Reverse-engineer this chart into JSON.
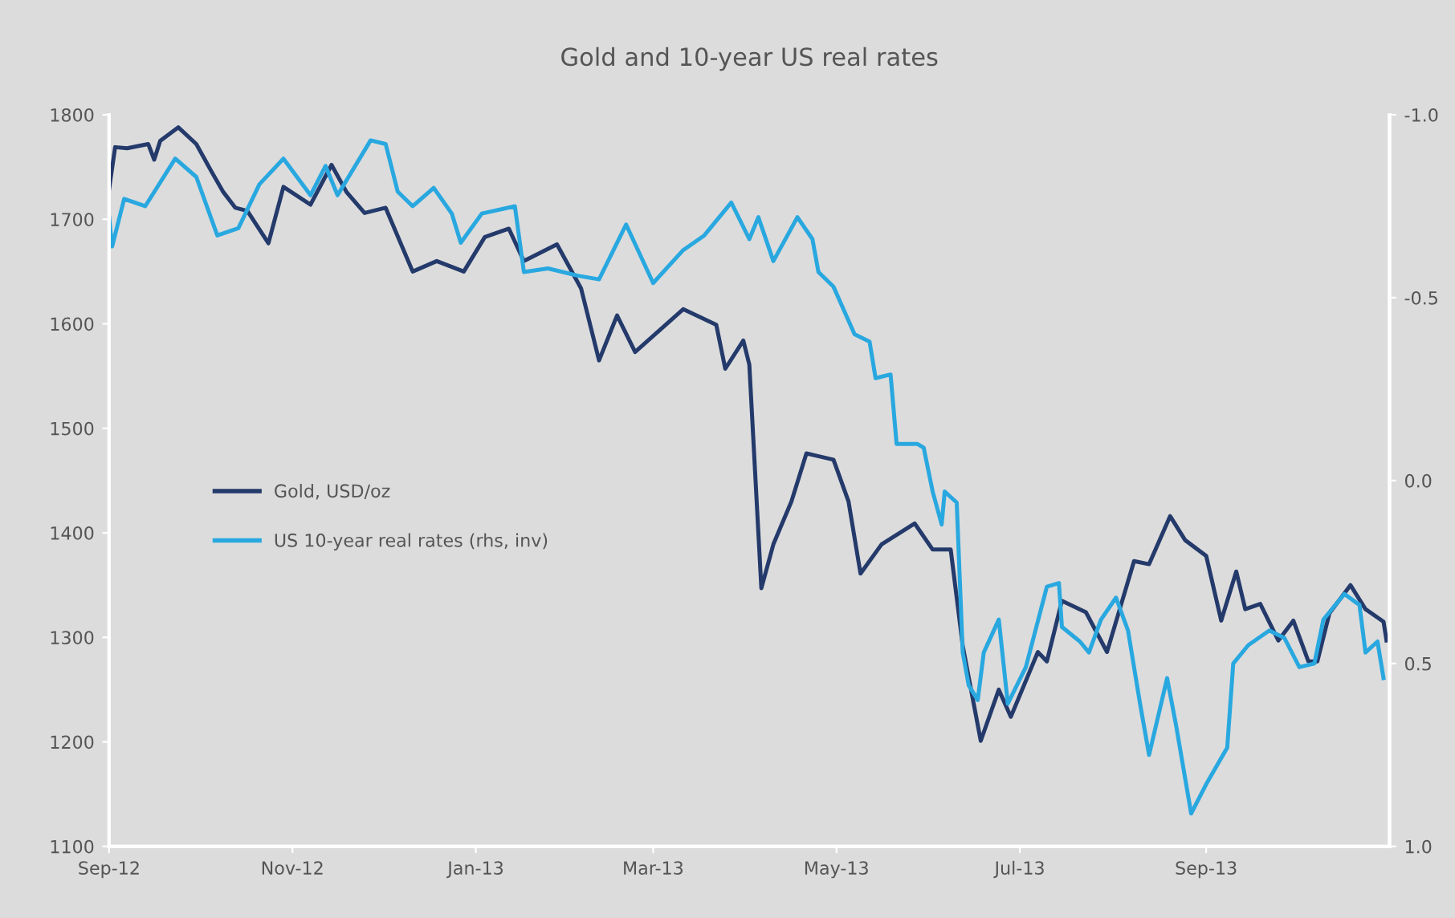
{
  "chart_data": {
    "type": "line",
    "title": "Gold and 10-year US real rates",
    "xlim": [
      "2012-09-01",
      "2013-11-01"
    ],
    "xticks": [
      {
        "value": "2012-09-01",
        "label": "Sep-12"
      },
      {
        "value": "2012-11-01",
        "label": "Nov-12"
      },
      {
        "value": "2013-01-01",
        "label": "Jan-13"
      },
      {
        "value": "2013-03-01",
        "label": "Mar-13"
      },
      {
        "value": "2013-05-01",
        "label": "May-13"
      },
      {
        "value": "2013-07-01",
        "label": "Jul-13"
      },
      {
        "value": "2013-09-01",
        "label": "Sep-13"
      }
    ],
    "ylim": [
      1100,
      1800
    ],
    "yticks": [
      1100,
      1200,
      1300,
      1400,
      1500,
      1600,
      1700,
      1800
    ],
    "y2lim": [
      1.0,
      -1.0
    ],
    "y2ticks": [
      {
        "value": 1.0,
        "label": "1.0"
      },
      {
        "value": 0.5,
        "label": "0.5"
      },
      {
        "value": 0.0,
        "label": "0.0"
      },
      {
        "value": -0.5,
        "label": "-0.5"
      },
      {
        "value": -1.0,
        "label": "-1.0"
      }
    ],
    "grid": false,
    "legend": "left",
    "series": [
      {
        "name": "Gold, USD/oz",
        "color": "#243a6b",
        "x": [
          "2012-09-01",
          "2012-09-03",
          "2012-09-07",
          "2012-09-14",
          "2012-09-16",
          "2012-09-18",
          "2012-09-24",
          "2012-09-30",
          "2012-10-05",
          "2012-10-09",
          "2012-10-13",
          "2012-10-17",
          "2012-10-24",
          "2012-10-29",
          "2012-11-07",
          "2012-11-14",
          "2012-11-19",
          "2012-11-25",
          "2012-12-02",
          "2012-12-11",
          "2012-12-19",
          "2012-12-28",
          "2013-01-04",
          "2013-01-12",
          "2013-01-17",
          "2013-01-28",
          "2013-02-05",
          "2013-02-11",
          "2013-02-17",
          "2013-02-23",
          "2013-03-11",
          "2013-03-22",
          "2013-03-25",
          "2013-03-31",
          "2013-04-02",
          "2013-04-06",
          "2013-04-10",
          "2013-04-16",
          "2013-04-21",
          "2013-04-30",
          "2013-05-05",
          "2013-05-09",
          "2013-05-16",
          "2013-05-27",
          "2013-06-02",
          "2013-06-08",
          "2013-06-12",
          "2013-06-18",
          "2013-06-24",
          "2013-06-28",
          "2013-07-07",
          "2013-07-10",
          "2013-07-15",
          "2013-07-23",
          "2013-07-30",
          "2013-08-08",
          "2013-08-13",
          "2013-08-20",
          "2013-08-25",
          "2013-09-01",
          "2013-09-06",
          "2013-09-11",
          "2013-09-14",
          "2013-09-19",
          "2013-09-25",
          "2013-09-30",
          "2013-10-05",
          "2013-10-08",
          "2013-10-12",
          "2013-10-19",
          "2013-10-24",
          "2013-10-30",
          "2013-10-31"
        ],
        "values": [
          1729,
          1769,
          1768,
          1772,
          1757,
          1775,
          1788,
          1772,
          1746,
          1726,
          1711,
          1708,
          1677,
          1731,
          1714,
          1752,
          1726,
          1706,
          1711,
          1650,
          1660,
          1650,
          1683,
          1691,
          1660,
          1676,
          1634,
          1565,
          1608,
          1573,
          1614,
          1599,
          1557,
          1584,
          1561,
          1347,
          1389,
          1430,
          1476,
          1470,
          1430,
          1361,
          1389,
          1409,
          1384,
          1384,
          1292,
          1201,
          1250,
          1224,
          1286,
          1277,
          1335,
          1324,
          1286,
          1373,
          1370,
          1416,
          1393,
          1378,
          1316,
          1363,
          1327,
          1332,
          1297,
          1316,
          1277,
          1277,
          1323,
          1350,
          1327,
          1315,
          1297
        ]
      },
      {
        "name": "US 10-year real rates (rhs, inv)",
        "color": "#29a8e0",
        "axis": "y2",
        "x": [
          "2012-09-01",
          "2012-09-02",
          "2012-09-06",
          "2012-09-13",
          "2012-09-23",
          "2012-09-30",
          "2012-10-07",
          "2012-10-14",
          "2012-10-21",
          "2012-10-29",
          "2012-11-07",
          "2012-11-12",
          "2012-11-16",
          "2012-11-27",
          "2012-12-02",
          "2012-12-06",
          "2012-12-11",
          "2012-12-18",
          "2012-12-24",
          "2012-12-27",
          "2013-01-03",
          "2013-01-14",
          "2013-01-17",
          "2013-01-25",
          "2013-02-04",
          "2013-02-11",
          "2013-02-20",
          "2013-03-01",
          "2013-03-11",
          "2013-03-18",
          "2013-03-27",
          "2013-04-02",
          "2013-04-05",
          "2013-04-10",
          "2013-04-18",
          "2013-04-23",
          "2013-04-25",
          "2013-04-30",
          "2013-05-07",
          "2013-05-12",
          "2013-05-14",
          "2013-05-19",
          "2013-05-21",
          "2013-05-28",
          "2013-05-30",
          "2013-06-02",
          "2013-06-05",
          "2013-06-06",
          "2013-06-10",
          "2013-06-12",
          "2013-06-14",
          "2013-06-17",
          "2013-06-19",
          "2013-06-24",
          "2013-06-27",
          "2013-07-03",
          "2013-07-10",
          "2013-07-14",
          "2013-07-15",
          "2013-07-21",
          "2013-07-24",
          "2013-07-28",
          "2013-08-02",
          "2013-08-06",
          "2013-08-10",
          "2013-08-13",
          "2013-08-19",
          "2013-08-22",
          "2013-08-27",
          "2013-09-01",
          "2013-09-08",
          "2013-09-10",
          "2013-09-15",
          "2013-09-22",
          "2013-09-27",
          "2013-10-02",
          "2013-10-07",
          "2013-10-10",
          "2013-10-17",
          "2013-10-22",
          "2013-10-24",
          "2013-10-28",
          "2013-10-30"
        ],
        "values": [
          -0.72,
          -0.64,
          -0.77,
          -0.75,
          -0.88,
          -0.83,
          -0.67,
          -0.69,
          -0.81,
          -0.88,
          -0.78,
          -0.86,
          -0.78,
          -0.93,
          -0.92,
          -0.79,
          -0.75,
          -0.8,
          -0.73,
          -0.65,
          -0.73,
          -0.75,
          -0.57,
          -0.58,
          -0.56,
          -0.55,
          -0.7,
          -0.54,
          -0.63,
          -0.67,
          -0.76,
          -0.66,
          -0.72,
          -0.6,
          -0.72,
          -0.66,
          -0.57,
          -0.53,
          -0.4,
          -0.38,
          -0.28,
          -0.29,
          -0.1,
          -0.1,
          -0.09,
          0.03,
          0.12,
          0.03,
          0.06,
          0.47,
          0.56,
          0.6,
          0.47,
          0.38,
          0.61,
          0.51,
          0.29,
          0.28,
          0.4,
          0.44,
          0.47,
          0.38,
          0.32,
          0.41,
          0.61,
          0.75,
          0.54,
          0.67,
          0.91,
          0.83,
          0.73,
          0.5,
          0.45,
          0.41,
          0.43,
          0.51,
          0.5,
          0.38,
          0.31,
          0.34,
          0.47,
          0.44,
          0.54
        ]
      }
    ]
  }
}
